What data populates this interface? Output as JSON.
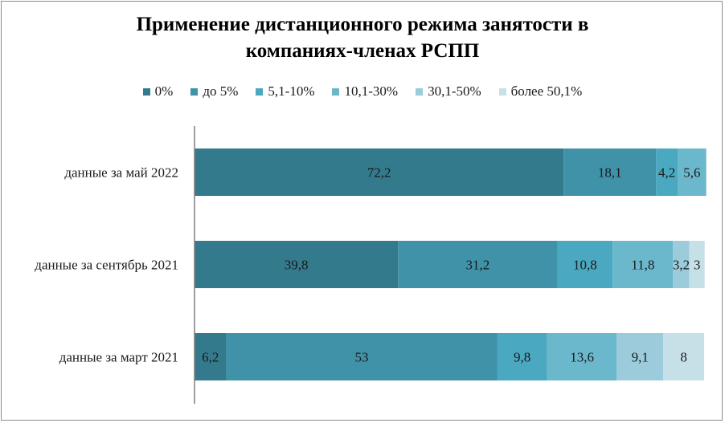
{
  "chart_data": {
    "type": "bar",
    "orientation": "horizontal",
    "stacked": true,
    "title_line1": "Применение дистанционного режима занятости в",
    "title_line2": "компаниях-членах РСПП",
    "categories": [
      "данные за май 2022",
      "данные за сентябрь 2021",
      "данные за март 2021"
    ],
    "series": [
      {
        "name": "0%",
        "color": "#347a8d",
        "values": [
          72.2,
          39.8,
          6.2
        ],
        "labels": [
          "72,2",
          "39,8",
          "6,2"
        ]
      },
      {
        "name": "до 5%",
        "color": "#3f92a8",
        "values": [
          18.1,
          31.2,
          53
        ],
        "labels": [
          "18,1",
          "31,2",
          "53"
        ]
      },
      {
        "name": "5,1-10%",
        "color": "#4aa8c0",
        "values": [
          4.2,
          10.8,
          9.8
        ],
        "labels": [
          "4,2",
          "10,8",
          "9,8"
        ]
      },
      {
        "name": "10,1-30%",
        "color": "#6bb8cc",
        "values": [
          5.6,
          11.8,
          13.6
        ],
        "labels": [
          "5,6",
          "11,8",
          "13,6"
        ]
      },
      {
        "name": "30,1-50%",
        "color": "#9ccbdb",
        "values": [
          0,
          3.2,
          9.1
        ],
        "labels": [
          "",
          "3,2",
          "9,1"
        ]
      },
      {
        "name": "более 50,1%",
        "color": "#c6e0e8",
        "values": [
          0,
          3,
          8
        ],
        "labels": [
          "",
          "3",
          "8"
        ]
      }
    ],
    "xlim": [
      0,
      100
    ],
    "legend_position": "top",
    "grid": false
  }
}
